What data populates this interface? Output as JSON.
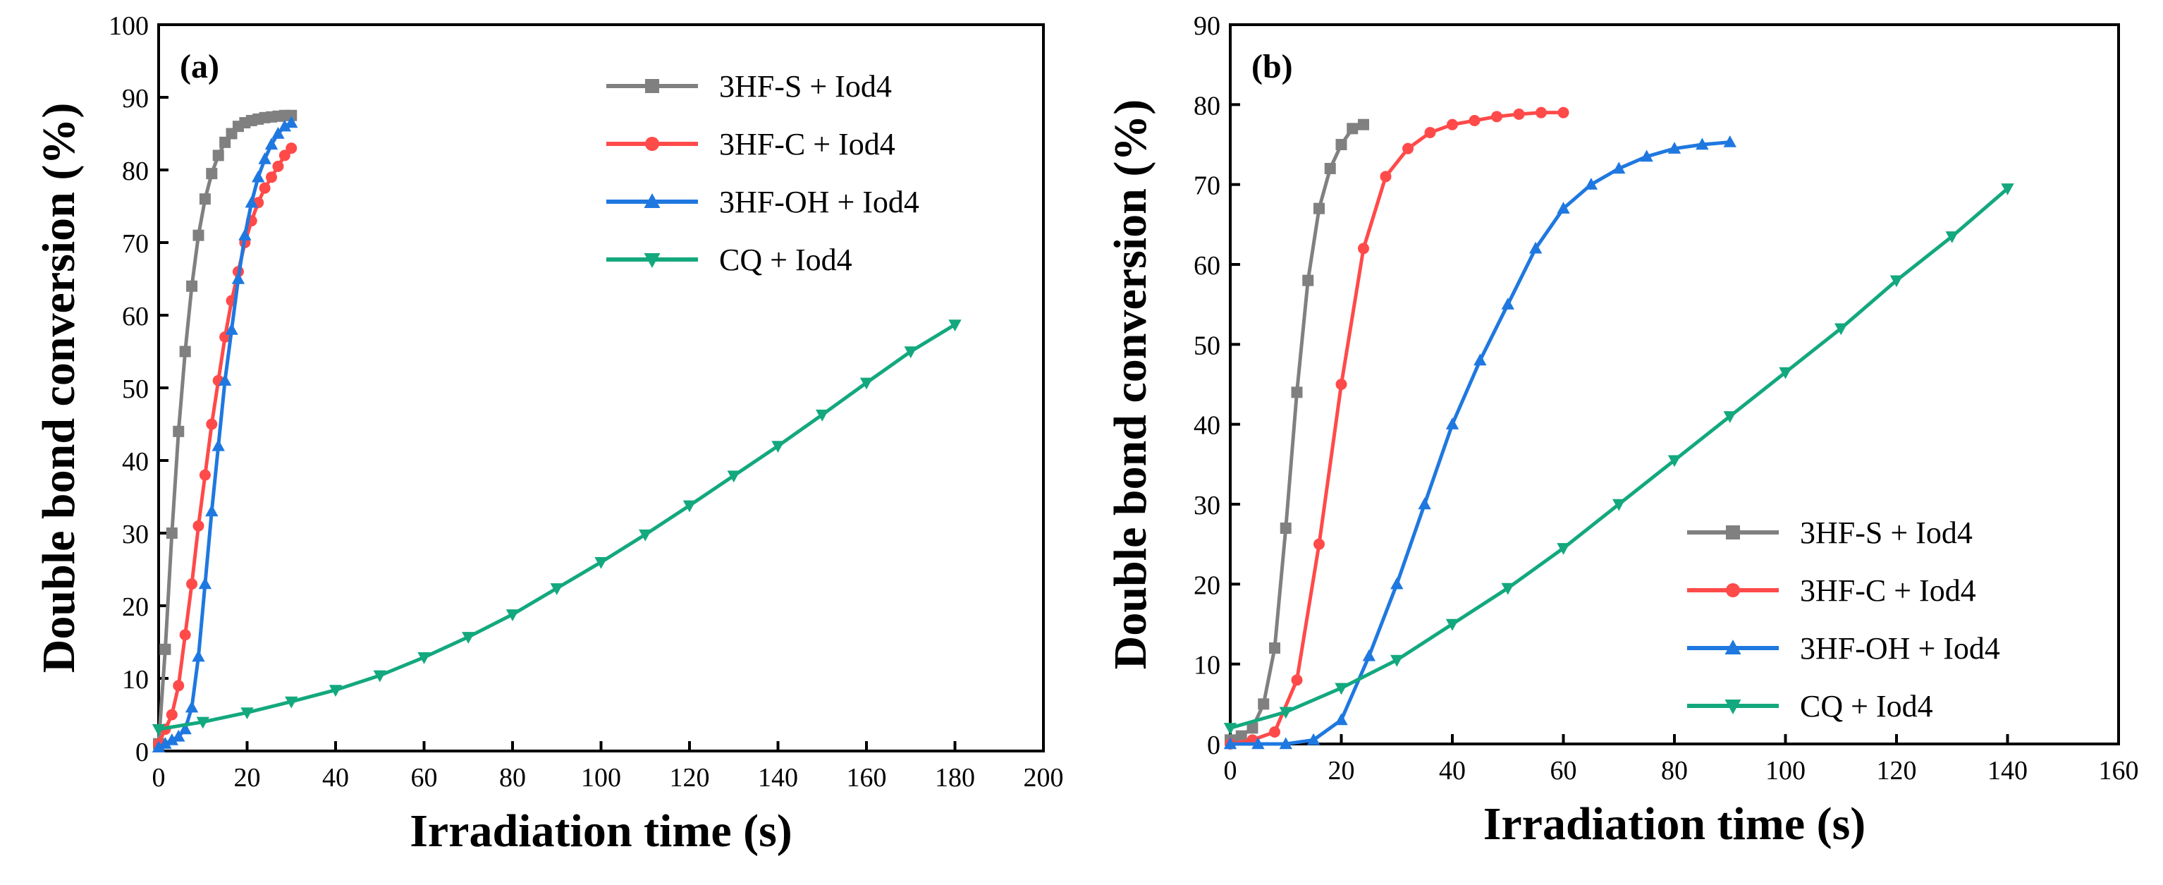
{
  "chart_data": [
    {
      "type": "line",
      "panel_label": "(a)",
      "xlabel": "Irradiation time (s)",
      "ylabel": "Double bond conversion (%)",
      "xlim": [
        0,
        200
      ],
      "ylim": [
        0,
        100
      ],
      "xticks": [
        0,
        20,
        40,
        60,
        80,
        100,
        120,
        140,
        160,
        180,
        200
      ],
      "yticks": [
        0,
        10,
        20,
        30,
        40,
        50,
        60,
        70,
        80,
        90,
        100
      ],
      "legend_position": "top-right",
      "series": [
        {
          "name": "3HF-S + Iod4",
          "color": "#808080",
          "marker": "square",
          "x": [
            0,
            1.5,
            3,
            4.5,
            6,
            7.5,
            9,
            10.5,
            12,
            13.5,
            15,
            16.5,
            18,
            19.5,
            21,
            22.5,
            24,
            25.5,
            27,
            28.5,
            30
          ],
          "y": [
            1,
            14,
            30,
            44,
            55,
            64,
            71,
            76,
            79.5,
            82,
            83.8,
            85,
            86,
            86.5,
            86.8,
            87,
            87.2,
            87.3,
            87.4,
            87.5,
            87.5
          ]
        },
        {
          "name": "3HF-C + Iod4",
          "color": "#ff4a4a",
          "marker": "circle",
          "x": [
            0,
            1.5,
            3,
            4.5,
            6,
            7.5,
            9,
            10.5,
            12,
            13.5,
            15,
            16.5,
            18,
            19.5,
            21,
            22.5,
            24,
            25.5,
            27,
            28.5,
            30
          ],
          "y": [
            1,
            3,
            5,
            9,
            16,
            23,
            31,
            38,
            45,
            51,
            57,
            62,
            66,
            70,
            73,
            75.5,
            77.5,
            79,
            80.5,
            82,
            83
          ]
        },
        {
          "name": "3HF-OH + Iod4",
          "color": "#1f78e0",
          "marker": "triangle-up",
          "x": [
            0,
            1.5,
            3,
            4.5,
            6,
            7.5,
            9,
            10.5,
            12,
            13.5,
            15,
            16.5,
            18,
            19.5,
            21,
            22.5,
            24,
            25.5,
            27,
            28.5,
            30
          ],
          "y": [
            0.5,
            1,
            1.5,
            2,
            3,
            6,
            13,
            23,
            33,
            42,
            51,
            58,
            65,
            71,
            75.5,
            79,
            81.5,
            83.5,
            85,
            86,
            86.5
          ]
        },
        {
          "name": "CQ + Iod4",
          "color": "#13a87e",
          "marker": "triangle-down",
          "x": [
            0,
            10,
            20,
            30,
            40,
            50,
            60,
            70,
            80,
            90,
            100,
            110,
            120,
            130,
            140,
            150,
            160,
            170,
            180
          ],
          "y": [
            3,
            4,
            5.3,
            6.8,
            8.4,
            10.4,
            12.9,
            15.7,
            18.8,
            22.4,
            26,
            29.8,
            33.8,
            37.9,
            42,
            46.3,
            50.7,
            55,
            58.7
          ]
        }
      ]
    },
    {
      "type": "line",
      "panel_label": "(b)",
      "xlabel": "Irradiation time (s)",
      "ylabel": "Double bond conversion (%)",
      "xlim": [
        0,
        160
      ],
      "ylim": [
        0,
        90
      ],
      "xticks": [
        0,
        20,
        40,
        60,
        80,
        100,
        120,
        140,
        160
      ],
      "yticks": [
        0,
        10,
        20,
        30,
        40,
        50,
        60,
        70,
        80,
        90
      ],
      "legend_position": "bottom-right",
      "series": [
        {
          "name": "3HF-S + Iod4",
          "color": "#808080",
          "marker": "square",
          "x": [
            0,
            2,
            4,
            6,
            8,
            10,
            12,
            14,
            16,
            18,
            20,
            22,
            24
          ],
          "y": [
            0.5,
            1,
            2,
            5,
            12,
            27,
            44,
            58,
            67,
            72,
            75,
            77,
            77.5
          ]
        },
        {
          "name": "3HF-C + Iod4",
          "color": "#ff4a4a",
          "marker": "circle",
          "x": [
            0,
            4,
            8,
            12,
            16,
            20,
            24,
            28,
            32,
            36,
            40,
            44,
            48,
            52,
            56,
            60
          ],
          "y": [
            0,
            0.5,
            1.5,
            8,
            25,
            45,
            62,
            71,
            74.5,
            76.5,
            77.5,
            78,
            78.5,
            78.8,
            79,
            79
          ]
        },
        {
          "name": "3HF-OH + Iod4",
          "color": "#1f78e0",
          "marker": "triangle-up",
          "x": [
            0,
            5,
            10,
            15,
            20,
            25,
            30,
            35,
            40,
            45,
            50,
            55,
            60,
            65,
            70,
            75,
            80,
            85,
            90
          ],
          "y": [
            0,
            0,
            0,
            0.5,
            3,
            11,
            20,
            30,
            40,
            48,
            55,
            62,
            67,
            70,
            72,
            73.5,
            74.5,
            75,
            75.3
          ]
        },
        {
          "name": "CQ + Iod4",
          "color": "#13a87e",
          "marker": "triangle-down",
          "x": [
            0,
            10,
            20,
            30,
            40,
            50,
            60,
            70,
            80,
            90,
            100,
            110,
            120,
            130,
            140
          ],
          "y": [
            2,
            4,
            7,
            10.5,
            15,
            19.5,
            24.5,
            30,
            35.5,
            41,
            46.5,
            52,
            58,
            63.5,
            69.5
          ]
        }
      ]
    }
  ]
}
